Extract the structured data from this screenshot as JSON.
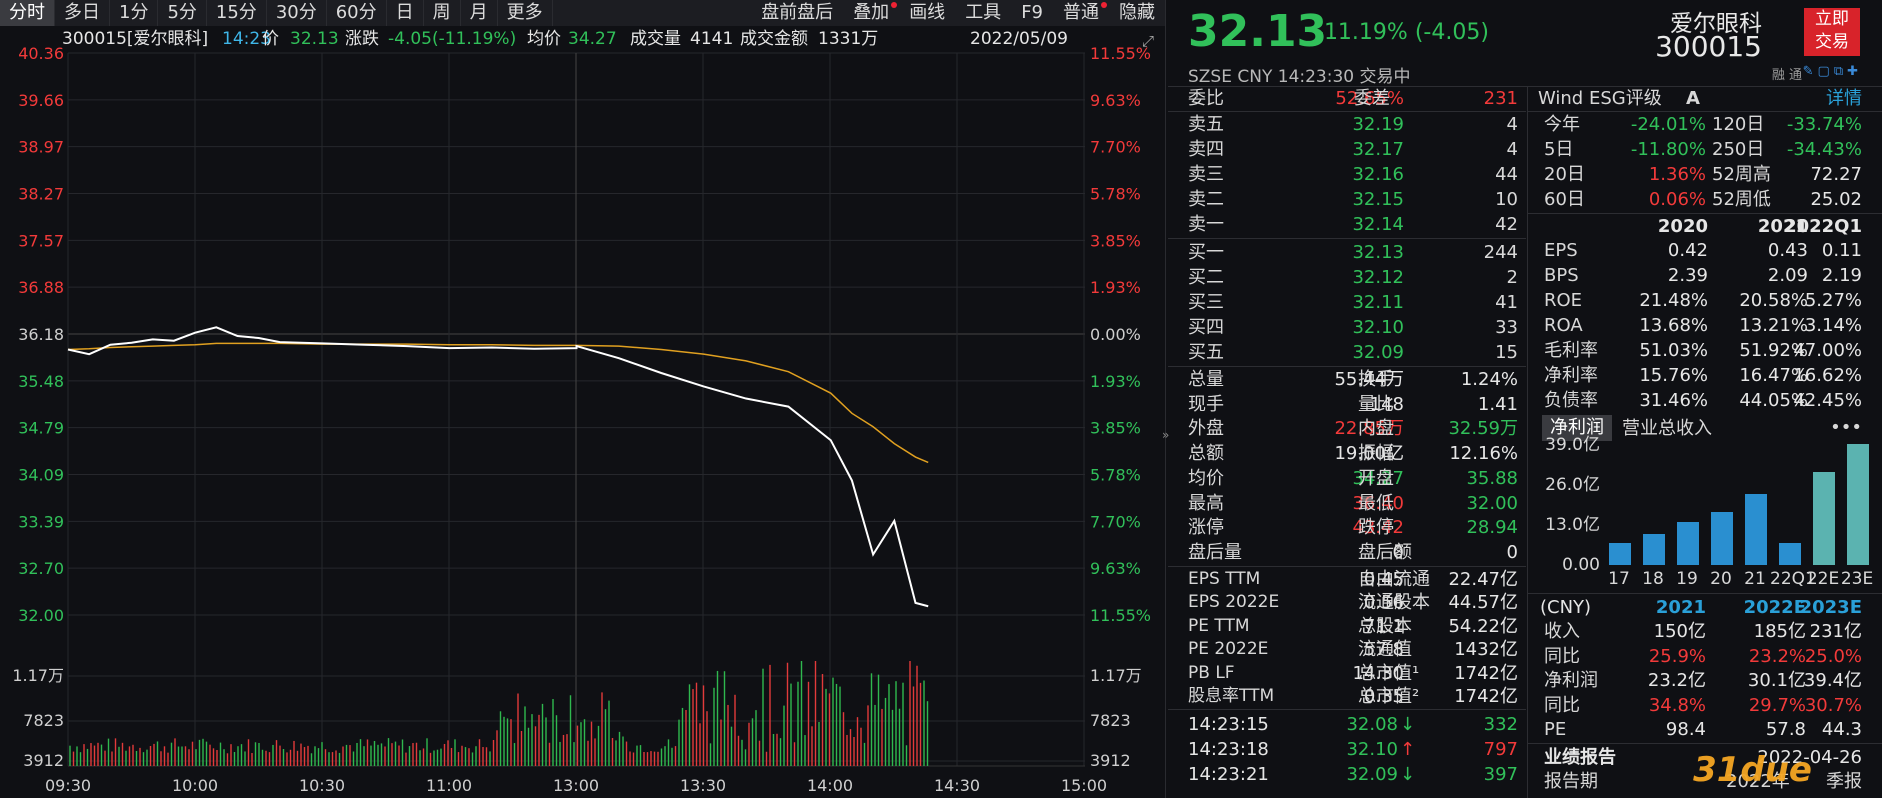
{
  "toolbar": {
    "tabs": [
      "分时",
      "多日",
      "1分",
      "5分",
      "15分",
      "30分",
      "60分",
      "日",
      "周",
      "月",
      "更多"
    ],
    "right": [
      "盘前盘后",
      "叠加",
      "画线",
      "工具",
      "F9",
      "普通",
      "隐藏"
    ]
  },
  "header": {
    "code_name": "300015[爱尔眼科]",
    "time": "14:23",
    "price_label": "价",
    "price": "32.13",
    "chg_label": "涨跌",
    "chg": "-4.05(-11.19%)",
    "avg_label": "均价",
    "avg": "34.27",
    "vol_label": "成交量",
    "vol": "4141",
    "amt_label": "成交金额",
    "amt": "1331万",
    "date": "2022/05/09"
  },
  "axes": {
    "price_left": [
      "40.36",
      "39.66",
      "38.97",
      "38.27",
      "37.57",
      "36.88",
      "36.18",
      "35.48",
      "34.79",
      "34.09",
      "33.39",
      "32.70",
      "32.00"
    ],
    "pct_right": [
      "11.55%",
      "9.63%",
      "7.70%",
      "5.78%",
      "3.85%",
      "1.93%",
      "0.00%",
      "1.93%",
      "3.85%",
      "5.78%",
      "7.70%",
      "9.63%",
      "11.55%"
    ],
    "vol_left": [
      "1.17万",
      "7823",
      "3912"
    ],
    "vol_right": [
      "1.17万",
      "7823",
      "3912"
    ],
    "time": [
      "09:30",
      "10:00",
      "10:30",
      "11:00",
      "13:00",
      "13:30",
      "14:00",
      "14:30",
      "15:00"
    ]
  },
  "chart_data": {
    "type": "line",
    "title": "300015 爱尔眼科 分时",
    "prev_close": 36.18,
    "ylim": [
      32.0,
      40.36
    ],
    "x": [
      "09:30",
      "09:35",
      "09:40",
      "09:45",
      "09:50",
      "09:55",
      "10:00",
      "10:05",
      "10:10",
      "10:15",
      "10:20",
      "10:30",
      "10:40",
      "10:50",
      "11:00",
      "11:10",
      "11:20",
      "11:30",
      "13:00",
      "13:10",
      "13:20",
      "13:30",
      "13:40",
      "13:50",
      "14:00",
      "14:05",
      "14:10",
      "14:15",
      "14:20",
      "14:23"
    ],
    "series": [
      {
        "name": "价",
        "values": [
          35.95,
          35.88,
          36.02,
          36.05,
          36.1,
          36.08,
          36.2,
          36.28,
          36.15,
          36.12,
          36.06,
          36.04,
          36.02,
          36.0,
          35.97,
          35.98,
          35.96,
          35.97,
          36.0,
          35.82,
          35.6,
          35.4,
          35.22,
          35.1,
          34.6,
          34.0,
          32.9,
          33.4,
          32.18,
          32.13
        ]
      },
      {
        "name": "均价",
        "values": [
          35.95,
          35.96,
          35.98,
          35.99,
          36.0,
          36.01,
          36.02,
          36.04,
          36.04,
          36.04,
          36.04,
          36.03,
          36.03,
          36.03,
          36.02,
          36.02,
          36.01,
          36.01,
          36.01,
          36.0,
          35.95,
          35.88,
          35.78,
          35.62,
          35.3,
          35.0,
          34.8,
          34.55,
          34.35,
          34.27
        ]
      }
    ],
    "volume_max": "1.17万"
  },
  "quote": {
    "price": "32.13",
    "change": "-11.19% (-4.05)",
    "exchange": "SZSE CNY 14:23:30 交易中",
    "name": "爱尔眼科",
    "code": "300015",
    "trade_btn": [
      "立即",
      "交易"
    ],
    "icons": "融 通"
  },
  "orderbook": {
    "wb_label": "委比",
    "wb": "52.65%",
    "wc_label": "委差",
    "wc": "231",
    "asks": [
      [
        "卖五",
        "32.19",
        "4"
      ],
      [
        "卖四",
        "32.17",
        "4"
      ],
      [
        "卖三",
        "32.16",
        "44"
      ],
      [
        "卖二",
        "32.15",
        "10"
      ],
      [
        "卖一",
        "32.14",
        "42"
      ]
    ],
    "bids": [
      [
        "买一",
        "32.13",
        "244"
      ],
      [
        "买二",
        "32.12",
        "2"
      ],
      [
        "买三",
        "32.11",
        "41"
      ],
      [
        "买四",
        "32.10",
        "33"
      ],
      [
        "买五",
        "32.09",
        "15"
      ]
    ]
  },
  "stats": [
    [
      "总量",
      "55.44万",
      "换手",
      "1.24%"
    ],
    [
      "现手",
      "148",
      "量比",
      "1.41"
    ],
    [
      "外盘",
      "22.85万",
      "内盘",
      "32.59万"
    ],
    [
      "总额",
      "19.00亿",
      "振幅",
      "12.16%"
    ],
    [
      "均价",
      "34.27",
      "开盘",
      "35.88"
    ],
    [
      "最高",
      "36.40",
      "最低",
      "32.00"
    ],
    [
      "涨停",
      "43.42",
      "跌停",
      "28.94"
    ],
    [
      "盘后量",
      "0",
      "盘后额",
      "0"
    ]
  ],
  "stats_colors": [
    [
      "w",
      "w"
    ],
    [
      "w",
      "w"
    ],
    [
      "r",
      "g"
    ],
    [
      "w",
      "w"
    ],
    [
      "g",
      "g"
    ],
    [
      "r",
      "g"
    ],
    [
      "r",
      "g"
    ],
    [
      "w",
      "w"
    ]
  ],
  "fundamentals": [
    [
      "EPS TTM",
      "0.45",
      "自由流通",
      "22.47亿"
    ],
    [
      "EPS 2022E",
      "0.56",
      "流通股本",
      "44.57亿"
    ],
    [
      "PE TTM",
      "71.1",
      "总股本",
      "54.22亿"
    ],
    [
      "PE 2022E",
      "57.8",
      "流通值",
      "1432亿"
    ],
    [
      "PB LF",
      "14.30",
      "总市值¹",
      "1742亿"
    ],
    [
      "股息率TTM",
      "0.35",
      "总市值²",
      "1742亿"
    ]
  ],
  "ticks": [
    [
      "14:23:15",
      "32.08",
      "↓",
      "332"
    ],
    [
      "14:23:18",
      "32.10",
      "↑",
      "797"
    ],
    [
      "14:23:21",
      "32.09",
      "↓",
      "397"
    ]
  ],
  "esg": {
    "label": "Wind ESG评级",
    "grade": "A",
    "detail": "详情"
  },
  "perf": [
    [
      "今年",
      "-24.01%",
      "120日",
      "-33.74%"
    ],
    [
      "5日",
      "-11.80%",
      "250日",
      "-34.43%"
    ],
    [
      "20日",
      "1.36%",
      "52周高",
      "72.27"
    ],
    [
      "60日",
      "0.06%",
      "52周低",
      "25.02"
    ]
  ],
  "fin_table": {
    "years": [
      "2020",
      "2021",
      "2022Q1"
    ],
    "rows": [
      [
        "EPS",
        "0.42",
        "0.43",
        "0.11"
      ],
      [
        "BPS",
        "2.39",
        "2.09",
        "2.19"
      ],
      [
        "ROE",
        "21.48%",
        "20.58%",
        "5.27%"
      ],
      [
        "ROA",
        "13.68%",
        "13.21%",
        "3.14%"
      ],
      [
        "毛利率",
        "51.03%",
        "51.92%",
        "47.00%"
      ],
      [
        "净利率",
        "15.76%",
        "16.47%",
        "16.62%"
      ],
      [
        "负债率",
        "31.46%",
        "44.05%",
        "42.45%"
      ]
    ]
  },
  "bar_tabs": [
    "净利润",
    "营业总收入"
  ],
  "bar_chart": {
    "type": "bar",
    "categories": [
      "17",
      "18",
      "19",
      "20",
      "21",
      "22Q1",
      "22E",
      "23E"
    ],
    "values": [
      7.0,
      10.0,
      14.0,
      17.2,
      23.2,
      7.0,
      30.1,
      39.4
    ],
    "ylabels": [
      "39.0亿",
      "26.0亿",
      "13.0亿",
      "0.00"
    ],
    "ylim": [
      0,
      39.0
    ]
  },
  "forecast": {
    "unit": "(CNY)",
    "years": [
      "2021",
      "2022E",
      "2023E"
    ],
    "rows": [
      [
        "收入",
        "150亿",
        "185亿",
        "231亿"
      ],
      [
        "同比",
        "25.9%",
        "23.2%",
        "25.0%"
      ],
      [
        "净利润",
        "23.2亿",
        "30.1亿",
        "39.4亿"
      ],
      [
        "同比",
        "34.8%",
        "29.7%",
        "30.7%"
      ],
      [
        "PE",
        "98.4",
        "57.8",
        "44.3"
      ]
    ]
  },
  "report": {
    "label": "业绩报告",
    "date": "2022-04-26",
    "row2": [
      "报告期",
      "2022年",
      "季报"
    ]
  },
  "watermark": "31due"
}
